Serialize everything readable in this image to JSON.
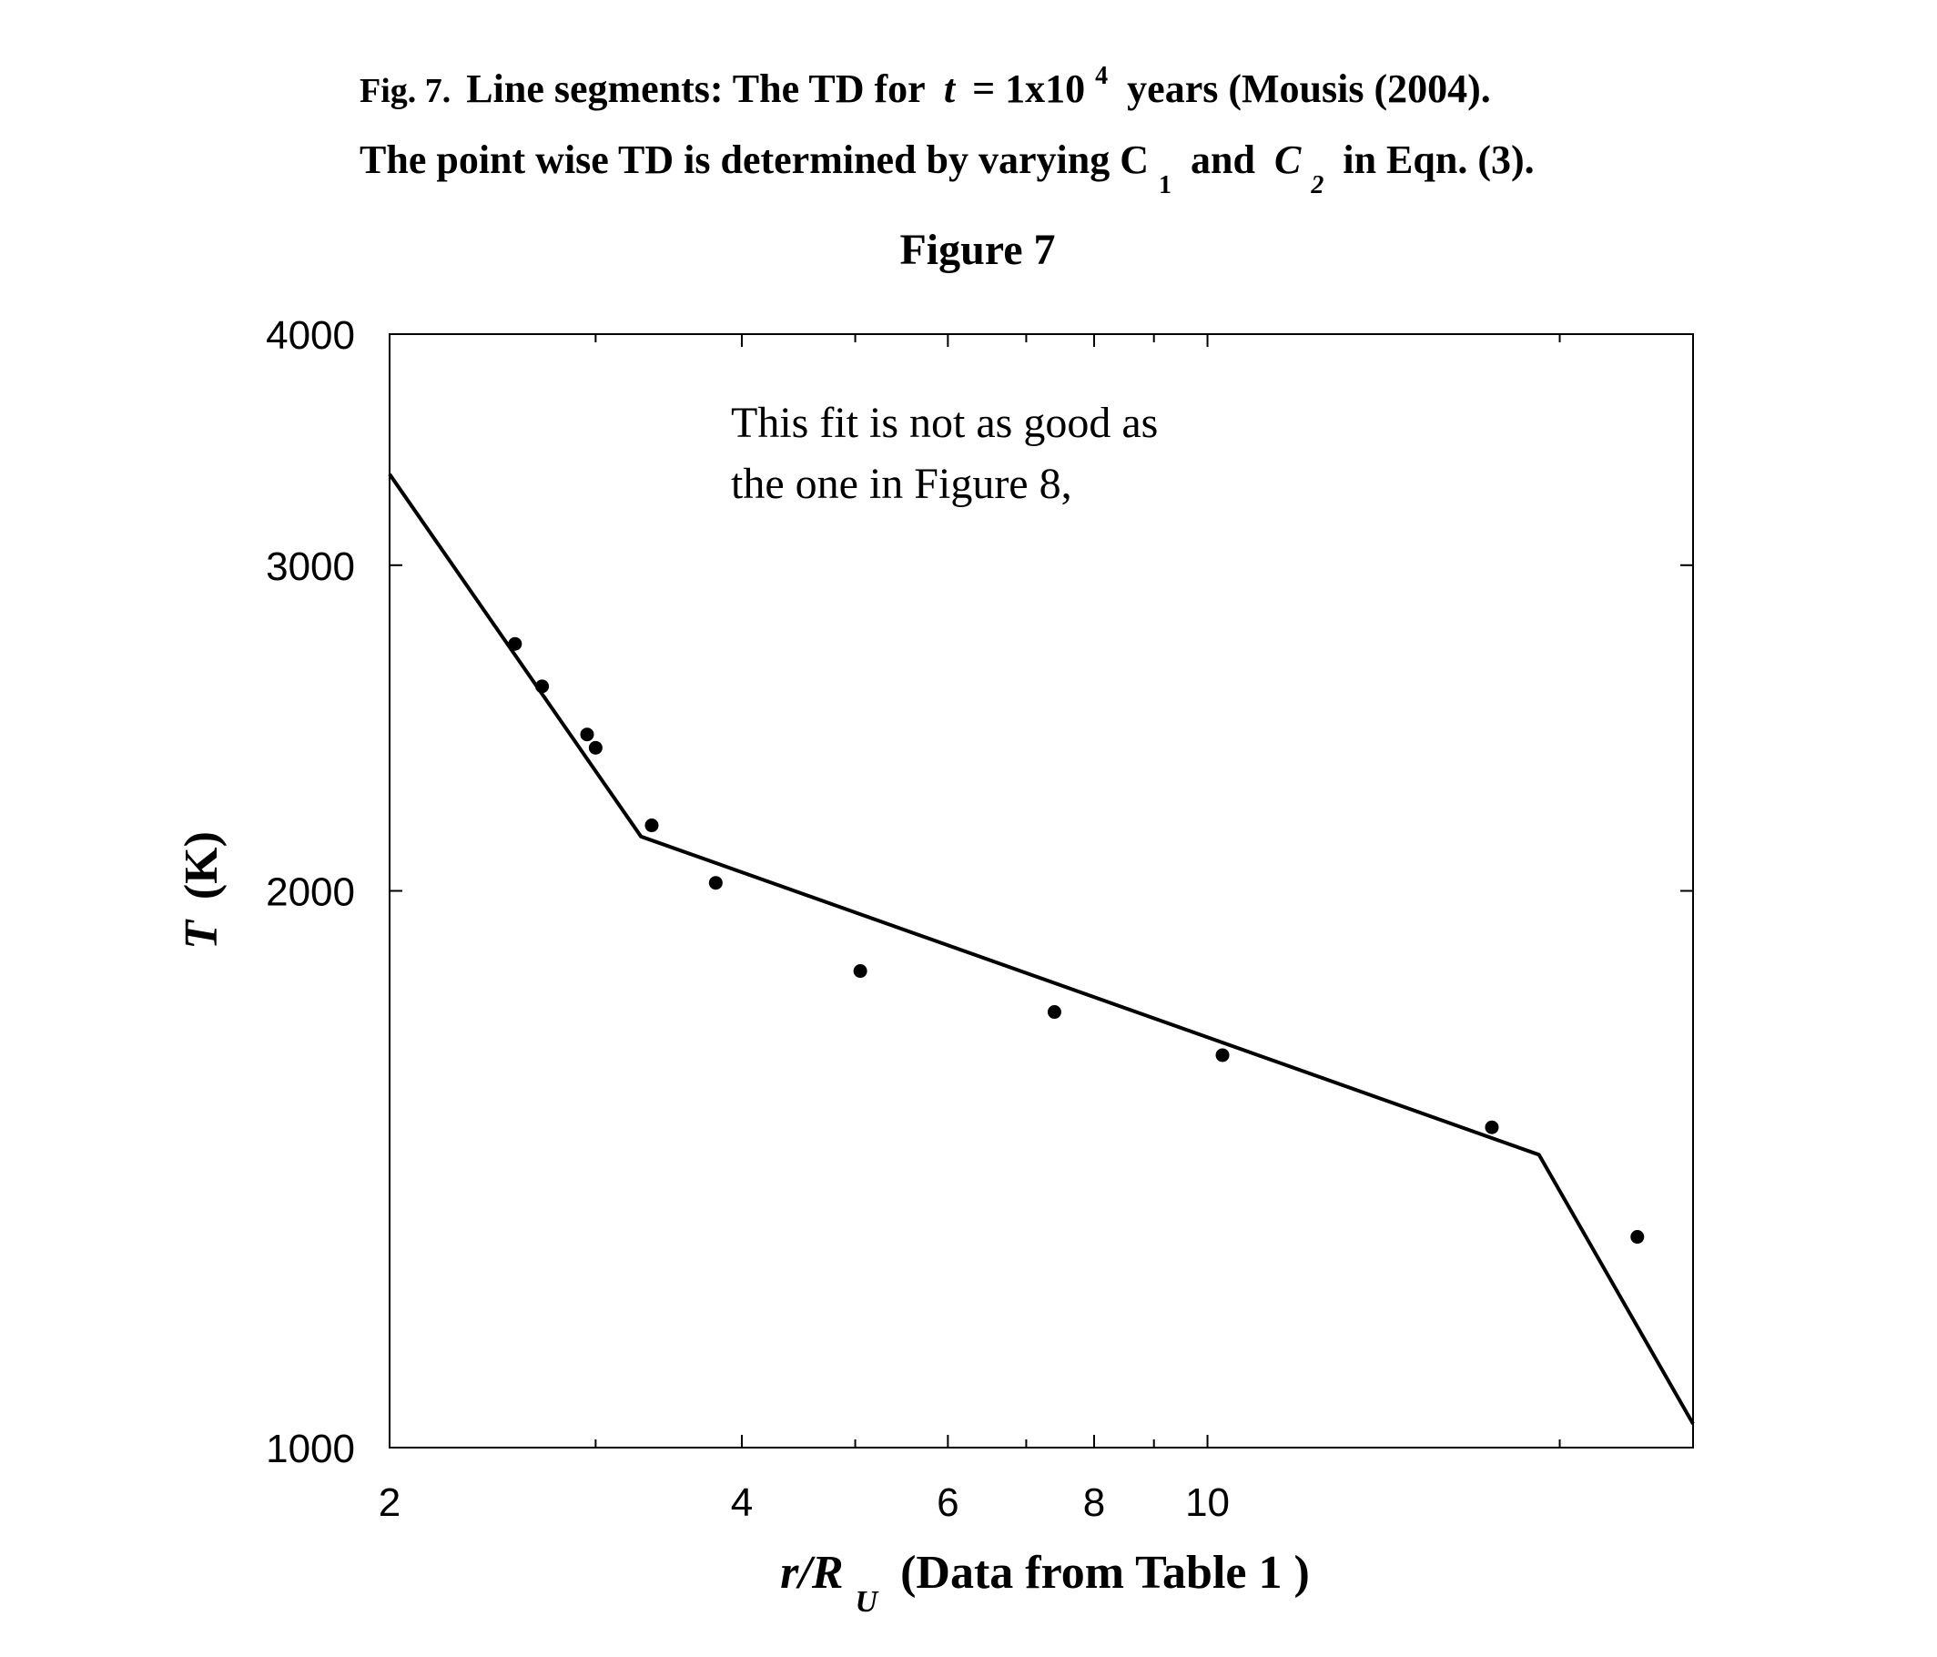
{
  "caption": {
    "fig_label": "Fig. 7.",
    "line1_text": "Line segments: The TD for",
    "line1_var": "t",
    "line1_eq": "= 1x10",
    "line1_exp": "4",
    "line1_tail": "years (Mousis (2004).",
    "line2_a": "The point wise TD is determined by varying C",
    "line2_sub1": "1",
    "line2_b": "and",
    "line2_c": "C",
    "line2_sub2": "2",
    "line2_d": "in Eqn. (3).",
    "figure_title": "Figure 7"
  },
  "chart_data": {
    "type": "scatter",
    "title": "Figure 7",
    "xlabel_main": "r/R",
    "xlabel_sub": "U",
    "xlabel_tail": "(Data from Table 1 )",
    "ylabel_main": "T",
    "ylabel_tail": "(K)",
    "xscale": "log",
    "yscale": "log",
    "xlim": [
      2,
      26
    ],
    "ylim": [
      1000,
      4000
    ],
    "xticks": [
      2,
      4,
      6,
      8,
      10
    ],
    "xminor": [
      3,
      5,
      7,
      9,
      20
    ],
    "yticks": [
      1000,
      2000,
      3000,
      4000
    ],
    "annotation": [
      "This fit is not as good as",
      "the one in Figure 8,"
    ],
    "series": [
      {
        "kind": "points",
        "x": [
          2.56,
          2.7,
          2.95,
          3.0,
          3.35,
          3.8,
          5.05,
          7.4,
          10.3,
          17.5,
          23.3
        ],
        "y": [
          2720,
          2580,
          2430,
          2390,
          2170,
          2020,
          1810,
          1720,
          1630,
          1490,
          1300
        ]
      },
      {
        "kind": "line",
        "x": [
          2.0,
          3.28,
          19.2,
          26.0
        ],
        "y": [
          3360,
          2140,
          1440,
          1030
        ]
      }
    ]
  }
}
